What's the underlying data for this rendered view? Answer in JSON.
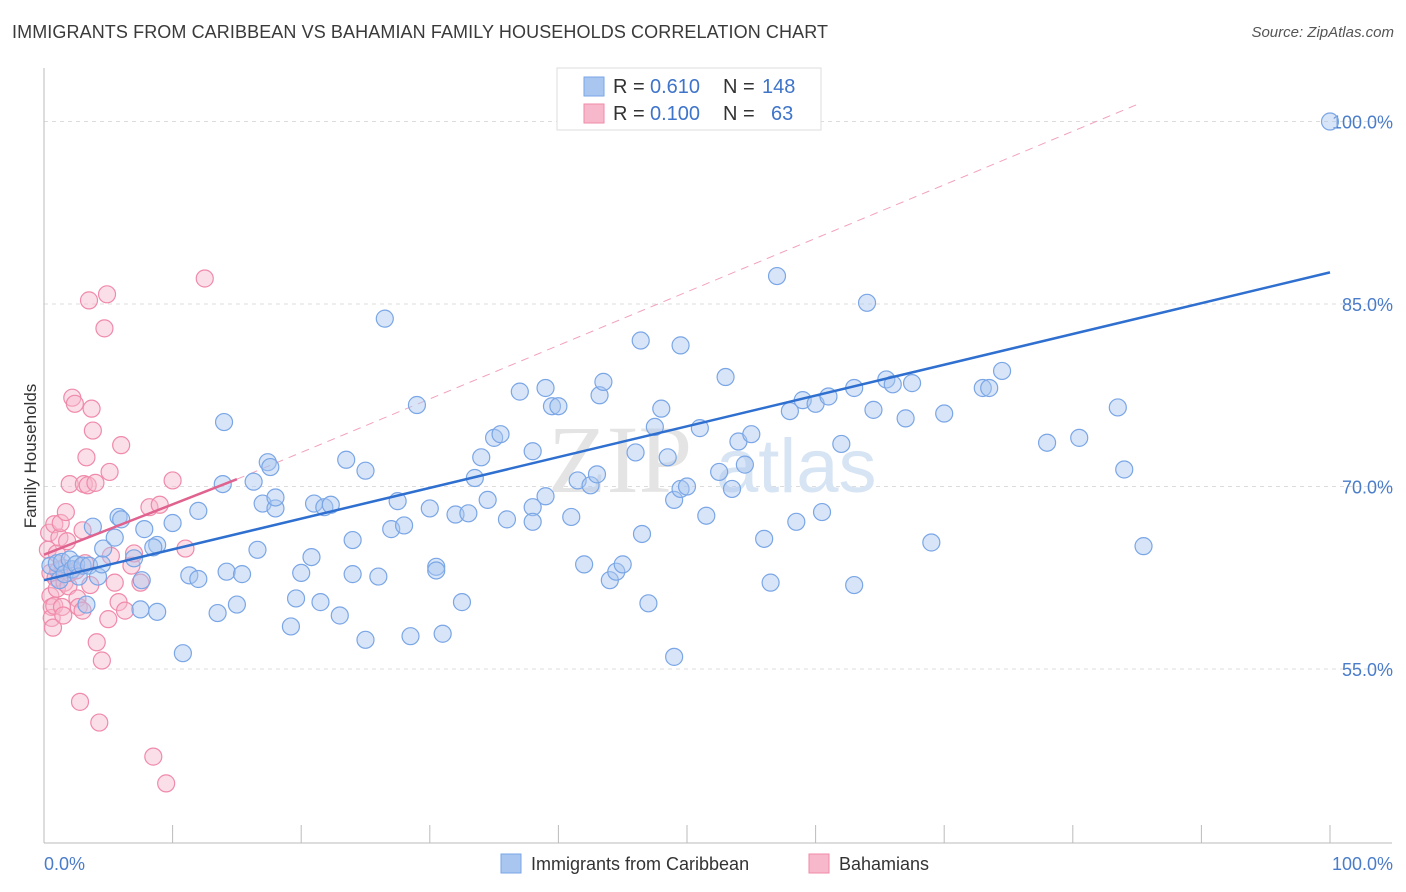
{
  "header": {
    "title": "IMMIGRANTS FROM CARIBBEAN VS BAHAMIAN FAMILY HOUSEHOLDS CORRELATION CHART",
    "source": "Source: ZipAtlas.com"
  },
  "watermark": {
    "zip": "ZIP",
    "atlas": "atlas"
  },
  "legend_top": [
    {
      "r_label": "R = ",
      "r_value": "0.610",
      "n_label": "N = ",
      "n_value": "148",
      "color": "#7aa6e6"
    },
    {
      "r_label": "R = ",
      "r_value": "0.100",
      "n_label": "N = ",
      "n_value": "63",
      "color": "#f08aaa"
    }
  ],
  "legend_bottom": [
    {
      "label": "Immigrants from Caribbean",
      "color": "#7aa6e6"
    },
    {
      "label": "Bahamians",
      "color": "#f08aaa"
    }
  ],
  "colors": {
    "blue_fill": "#a8c6f0",
    "blue_stroke": "#7aa6e6",
    "blue_line": "#2e6fcf",
    "pink_fill": "#f7b8cb",
    "pink_stroke": "#f08aaa",
    "pink_line": "#e0628e",
    "grid": "#dcdcdc",
    "axis_label": "#4a7cc9"
  },
  "chart_data": {
    "type": "scatter",
    "title": "IMMIGRANTS FROM CARIBBEAN VS BAHAMIAN FAMILY HOUSEHOLDS CORRELATION CHART",
    "ylabel": "Family Households",
    "xlabel": "",
    "xlim": [
      0,
      100
    ],
    "ylim": [
      40.7,
      104.4
    ],
    "y_ticks": [
      55.0,
      70.0,
      85.0,
      100.0
    ],
    "y_tick_labels": [
      "55.0%",
      "70.0%",
      "85.0%",
      "100.0%"
    ],
    "x_tick_labels": [
      "0.0%",
      "100.0%"
    ],
    "grid": "horizontal dashed",
    "legend": "top-center",
    "series": [
      {
        "name": "Immigrants from Caribbean",
        "R": 0.61,
        "N": 148,
        "trend": {
          "x": [
            0,
            100
          ],
          "y": [
            62.3,
            87.6
          ]
        },
        "points": [
          [
            0.5,
            63.5
          ],
          [
            1,
            63.7
          ],
          [
            1.2,
            62.3
          ],
          [
            1.4,
            63.8
          ],
          [
            1.6,
            62.8
          ],
          [
            2,
            64
          ],
          [
            2.2,
            63.2
          ],
          [
            2.5,
            63.6
          ],
          [
            2.7,
            62.6
          ],
          [
            3,
            63.5
          ],
          [
            3.3,
            60.3
          ],
          [
            3.5,
            63.5
          ],
          [
            3.8,
            66.7
          ],
          [
            4.2,
            62.6
          ],
          [
            4.5,
            63.6
          ],
          [
            4.6,
            64.9
          ],
          [
            5.5,
            65.8
          ],
          [
            5.8,
            67.5
          ],
          [
            6,
            67.3
          ],
          [
            7,
            64.1
          ],
          [
            7.5,
            59.9
          ],
          [
            7.6,
            62.3
          ],
          [
            7.8,
            66.5
          ],
          [
            8.8,
            59.7
          ],
          [
            8.8,
            65.2
          ],
          [
            10,
            67
          ],
          [
            8.5,
            65
          ],
          [
            10.8,
            56.3
          ],
          [
            11.3,
            62.7
          ],
          [
            12,
            68
          ],
          [
            12,
            62.4
          ],
          [
            13.5,
            59.6
          ],
          [
            13.9,
            70.2
          ],
          [
            14.2,
            63
          ],
          [
            14,
            75.3
          ],
          [
            15,
            60.3
          ],
          [
            15.4,
            62.8
          ],
          [
            16.3,
            70.4
          ],
          [
            16.6,
            64.8
          ],
          [
            17,
            68.6
          ],
          [
            17.4,
            72
          ],
          [
            17.6,
            71.6
          ],
          [
            18,
            68.2
          ],
          [
            18,
            69.1
          ],
          [
            19.2,
            58.5
          ],
          [
            19.6,
            60.8
          ],
          [
            20,
            62.9
          ],
          [
            20.8,
            64.2
          ],
          [
            21,
            68.6
          ],
          [
            21.5,
            60.5
          ],
          [
            21.8,
            68.3
          ],
          [
            22.3,
            68.5
          ],
          [
            23,
            59.4
          ],
          [
            23.5,
            72.2
          ],
          [
            24,
            62.8
          ],
          [
            24,
            65.6
          ],
          [
            25,
            71.3
          ],
          [
            25,
            57.4
          ],
          [
            26,
            62.6
          ],
          [
            26.5,
            83.8
          ],
          [
            27,
            66.5
          ],
          [
            27.5,
            68.8
          ],
          [
            28,
            66.8
          ],
          [
            29,
            76.7
          ],
          [
            28.5,
            57.7
          ],
          [
            30,
            68.2
          ],
          [
            30.5,
            63.4
          ],
          [
            30.5,
            63.1
          ],
          [
            31,
            57.9
          ],
          [
            32,
            67.7
          ],
          [
            32.5,
            60.5
          ],
          [
            33,
            67.8
          ],
          [
            33.5,
            70.7
          ],
          [
            34,
            72.4
          ],
          [
            34.5,
            68.9
          ],
          [
            35,
            74
          ],
          [
            35.5,
            74.3
          ],
          [
            36,
            67.3
          ],
          [
            37,
            77.8
          ],
          [
            38,
            68.3
          ],
          [
            38,
            72.9
          ],
          [
            38,
            67.1
          ],
          [
            39,
            69.2
          ],
          [
            39,
            78.1
          ],
          [
            39.5,
            76.6
          ],
          [
            40,
            76.6
          ],
          [
            41,
            67.5
          ],
          [
            41.5,
            70.5
          ],
          [
            42,
            63.6
          ],
          [
            42.5,
            70.1
          ],
          [
            43,
            71
          ],
          [
            43.2,
            77.5
          ],
          [
            43.5,
            78.6
          ],
          [
            44,
            62.3
          ],
          [
            44.5,
            63
          ],
          [
            45,
            63.6
          ],
          [
            46,
            72.8
          ],
          [
            46.4,
            82
          ],
          [
            46.5,
            66.1
          ],
          [
            47,
            60.4
          ],
          [
            47.5,
            74.9
          ],
          [
            48,
            76.4
          ],
          [
            48.5,
            72.4
          ],
          [
            49,
            68.9
          ],
          [
            49.5,
            81.6
          ],
          [
            49,
            56
          ],
          [
            49.5,
            69.8
          ],
          [
            50,
            70
          ],
          [
            51,
            74.8
          ],
          [
            51.5,
            67.6
          ],
          [
            52.5,
            71.2
          ],
          [
            53,
            79
          ],
          [
            53.5,
            69.8
          ],
          [
            54,
            73.7
          ],
          [
            54.5,
            71.8
          ],
          [
            55,
            74.3
          ],
          [
            56,
            65.7
          ],
          [
            56.5,
            62.1
          ],
          [
            57,
            87.3
          ],
          [
            58,
            76.2
          ],
          [
            58.5,
            67.1
          ],
          [
            59,
            77.1
          ],
          [
            60,
            76.8
          ],
          [
            60.5,
            67.9
          ],
          [
            61,
            77.4
          ],
          [
            62,
            73.5
          ],
          [
            63,
            78.1
          ],
          [
            63,
            61.9
          ],
          [
            64,
            85.1
          ],
          [
            64.5,
            76.3
          ],
          [
            65.5,
            78.8
          ],
          [
            66,
            78.4
          ],
          [
            67,
            75.6
          ],
          [
            67.5,
            78.5
          ],
          [
            69,
            65.4
          ],
          [
            70,
            76
          ],
          [
            73,
            78.1
          ],
          [
            73.5,
            78.1
          ],
          [
            74.5,
            79.5
          ],
          [
            78,
            73.6
          ],
          [
            80.5,
            74
          ],
          [
            83.5,
            76.5
          ],
          [
            84,
            71.4
          ],
          [
            85.5,
            65.1
          ],
          [
            100,
            100
          ]
        ]
      },
      {
        "name": "Bahamians",
        "R": 0.1,
        "N": 63,
        "trend": {
          "x": [
            0,
            15
          ],
          "y": [
            64.4,
            70.6
          ]
        },
        "points": [
          [
            0.3,
            64.8
          ],
          [
            0.4,
            66.2
          ],
          [
            0.5,
            62.9
          ],
          [
            0.5,
            61
          ],
          [
            0.6,
            60.1
          ],
          [
            0.6,
            59.2
          ],
          [
            0.7,
            58.4
          ],
          [
            0.8,
            66.9
          ],
          [
            0.8,
            60.2
          ],
          [
            0.9,
            62.5
          ],
          [
            1,
            64.5
          ],
          [
            1,
            61.6
          ],
          [
            1.1,
            63.1
          ],
          [
            1.2,
            65.8
          ],
          [
            1.3,
            67
          ],
          [
            1.4,
            60.1
          ],
          [
            1.5,
            59.4
          ],
          [
            1.5,
            63.3
          ],
          [
            1.6,
            62.1
          ],
          [
            1.7,
            67.9
          ],
          [
            1.8,
            65.5
          ],
          [
            1.9,
            61.8
          ],
          [
            2,
            70.2
          ],
          [
            2,
            62.9
          ],
          [
            2.2,
            77.3
          ],
          [
            2.4,
            76.8
          ],
          [
            2.5,
            63.1
          ],
          [
            2.6,
            60.8
          ],
          [
            2.7,
            60.1
          ],
          [
            2.8,
            52.3
          ],
          [
            3,
            59.8
          ],
          [
            3,
            66.4
          ],
          [
            3.1,
            70.2
          ],
          [
            3.2,
            63.7
          ],
          [
            3.3,
            72.4
          ],
          [
            3.4,
            70.1
          ],
          [
            3.5,
            85.3
          ],
          [
            3.6,
            61.9
          ],
          [
            3.7,
            76.4
          ],
          [
            3.8,
            74.6
          ],
          [
            4,
            70.3
          ],
          [
            4.1,
            57.2
          ],
          [
            4.3,
            50.6
          ],
          [
            4.5,
            55.7
          ],
          [
            4.7,
            83
          ],
          [
            4.9,
            85.8
          ],
          [
            5,
            59.1
          ],
          [
            5.1,
            71.2
          ],
          [
            5.2,
            64.3
          ],
          [
            5.5,
            62.1
          ],
          [
            5.8,
            60.5
          ],
          [
            6,
            73.4
          ],
          [
            6.3,
            59.8
          ],
          [
            6.8,
            63.5
          ],
          [
            7,
            64.5
          ],
          [
            7.5,
            62.1
          ],
          [
            8.2,
            68.3
          ],
          [
            8.5,
            47.8
          ],
          [
            9,
            68.5
          ],
          [
            9.5,
            45.6
          ],
          [
            10,
            70.5
          ],
          [
            11,
            64.9
          ],
          [
            12.5,
            87.1
          ]
        ]
      }
    ]
  }
}
